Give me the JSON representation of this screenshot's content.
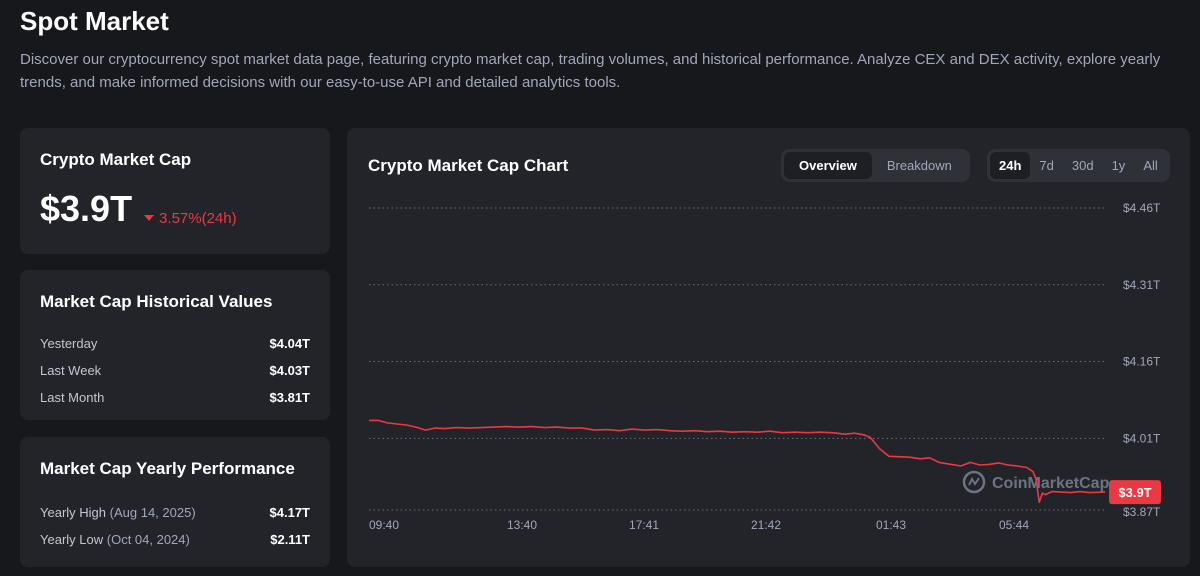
{
  "header": {
    "title": "Spot Market",
    "description": "Discover our cryptocurrency spot market data page, featuring crypto market cap, trading volumes, and historical performance. Analyze CEX and DEX activity, explore yearly trends, and make informed decisions with our easy-to-use API and detailed analytics tools."
  },
  "market_cap": {
    "title": "Crypto Market Cap",
    "value": "$3.9T",
    "change": "3.57%(24h)",
    "change_direction": "down",
    "change_color": "#ea3943"
  },
  "historical": {
    "title": "Market Cap Historical Values",
    "rows": [
      {
        "label": "Yesterday",
        "value": "$4.04T"
      },
      {
        "label": "Last Week",
        "value": "$4.03T"
      },
      {
        "label": "Last Month",
        "value": "$3.81T"
      }
    ]
  },
  "yearly": {
    "title": "Market Cap Yearly Performance",
    "rows": [
      {
        "label": "Yearly High",
        "date": "(Aug 14, 2025)",
        "value": "$4.17T"
      },
      {
        "label": "Yearly Low",
        "date": "(Oct 04, 2024)",
        "value": "$2.11T"
      }
    ]
  },
  "chart_card": {
    "title": "Crypto Market Cap Chart",
    "view_tabs": [
      "Overview",
      "Breakdown"
    ],
    "active_view": "Overview",
    "range_tabs": [
      "24h",
      "7d",
      "30d",
      "1y",
      "All"
    ],
    "active_range": "24h",
    "watermark": "CoinMarketCap",
    "current_label": "$3.9T"
  },
  "chart_data": {
    "type": "line",
    "title": "",
    "xlabel": "",
    "ylabel": "",
    "x_ticks": [
      "09:40",
      "13:40",
      "17:41",
      "21:42",
      "01:43",
      "05:44"
    ],
    "y_ticks": [
      {
        "value": 4.46,
        "label": "$4.46T"
      },
      {
        "value": 4.31,
        "label": "$4.31T"
      },
      {
        "value": 4.16,
        "label": "$4.16T"
      },
      {
        "value": 4.01,
        "label": "$4.01T"
      },
      {
        "value": 3.87,
        "label": "$3.87T"
      }
    ],
    "ylim": [
      3.87,
      4.46
    ],
    "y_unit": "T USD",
    "grid": "horizontal-dotted",
    "x_hours_from_start": [
      0,
      0.3,
      0.6,
      0.9,
      1.2,
      1.5,
      1.8,
      2.1,
      2.4,
      2.8,
      3.2,
      3.6,
      4.0,
      4.4,
      4.8,
      5.2,
      5.6,
      6.0,
      6.4,
      6.8,
      7.2,
      7.6,
      8.0,
      8.4,
      8.8,
      9.2,
      9.6,
      10.0,
      10.4,
      10.8,
      11.2,
      11.6,
      12.0,
      12.4,
      12.8,
      13.2,
      13.6,
      14.0,
      14.4,
      14.8,
      15.2,
      15.5,
      15.8,
      16.0,
      16.3,
      16.6,
      17.0,
      17.3,
      17.6,
      17.9,
      18.2,
      18.5,
      18.9,
      19.2,
      19.5,
      19.8,
      20.1,
      20.4,
      20.7,
      21.0,
      21.2,
      21.3,
      21.4,
      21.5,
      21.6,
      21.8,
      22.1,
      22.4,
      22.7,
      23.0,
      23.5
    ],
    "values": [
      4.045,
      4.045,
      4.04,
      4.038,
      4.036,
      4.032,
      4.026,
      4.03,
      4.029,
      4.031,
      4.03,
      4.031,
      4.032,
      4.033,
      4.032,
      4.033,
      4.031,
      4.032,
      4.03,
      4.03,
      4.026,
      4.027,
      4.025,
      4.028,
      4.026,
      4.027,
      4.025,
      4.024,
      4.025,
      4.023,
      4.024,
      4.022,
      4.023,
      4.022,
      4.024,
      4.021,
      4.022,
      4.021,
      4.022,
      4.021,
      4.018,
      4.02,
      4.017,
      4.012,
      3.99,
      3.975,
      3.974,
      3.973,
      3.97,
      3.972,
      3.963,
      3.96,
      3.956,
      3.963,
      3.958,
      3.959,
      3.962,
      3.958,
      3.956,
      3.953,
      3.945,
      3.93,
      3.885,
      3.903,
      3.9,
      3.906,
      3.905,
      3.904,
      3.906,
      3.904,
      3.905
    ],
    "series_color": "#ea3943"
  }
}
